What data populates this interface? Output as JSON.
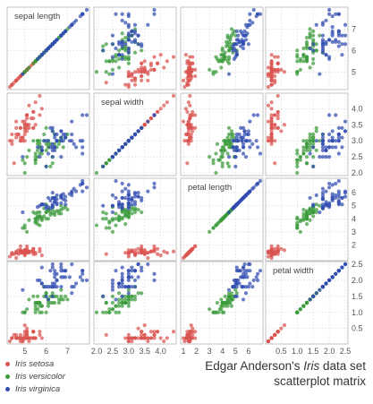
{
  "caption": {
    "line1_before": "Edgar Anderson's ",
    "line1_italic": "Iris",
    "line1_after": " data set",
    "line2": "scatterplot matrix"
  },
  "chart_data": {
    "type": "scatter",
    "title": "Edgar Anderson's Iris data set scatterplot matrix",
    "variables": [
      "sepal length",
      "sepal width",
      "petal length",
      "petal width"
    ],
    "ranges": [
      [
        4.3,
        7.9
      ],
      [
        2.0,
        4.4
      ],
      [
        1.0,
        6.9
      ],
      [
        0.1,
        2.5
      ]
    ],
    "bottom_ticks": [
      [
        5,
        6,
        7
      ],
      [
        2.0,
        2.5,
        3.0,
        3.5,
        4.0
      ],
      [
        1,
        2,
        3,
        4,
        5,
        6
      ],
      [
        0.5,
        1.0,
        1.5,
        2.0,
        2.5
      ]
    ],
    "bottom_tick_labels": [
      [
        "5",
        "6",
        "7"
      ],
      [
        "2.0",
        "2.5",
        "3.0",
        "3.5",
        "4.0"
      ],
      [
        "1",
        "2",
        "3",
        "4",
        "5",
        "6"
      ],
      [
        "0.5",
        "1.0",
        "1.5",
        "2.0",
        "2.5"
      ]
    ],
    "right_ticks": [
      [
        5,
        6,
        7
      ],
      [
        2.0,
        2.5,
        3.0,
        3.5,
        4.0
      ],
      [
        2,
        3,
        4,
        5,
        6
      ],
      [
        0.5,
        1.0,
        1.5,
        2.0,
        2.5
      ]
    ],
    "right_tick_labels": [
      [
        "5",
        "6",
        "7"
      ],
      [
        "2.0",
        "2.5",
        "3.0",
        "3.5",
        "4.0"
      ],
      [
        "2",
        "3",
        "4",
        "5",
        "6"
      ],
      [
        "0.5",
        "1.0",
        "1.5",
        "2.0",
        "2.5"
      ]
    ],
    "grid": true,
    "legend_position": "bottom-left",
    "series": [
      {
        "name": "Iris setosa",
        "color": "#d9534f",
        "data": [
          [
            5.1,
            3.5,
            1.4,
            0.2
          ],
          [
            4.9,
            3.0,
            1.4,
            0.2
          ],
          [
            4.7,
            3.2,
            1.3,
            0.2
          ],
          [
            4.6,
            3.1,
            1.5,
            0.2
          ],
          [
            5.0,
            3.6,
            1.4,
            0.2
          ],
          [
            5.4,
            3.9,
            1.7,
            0.4
          ],
          [
            4.6,
            3.4,
            1.4,
            0.3
          ],
          [
            5.0,
            3.4,
            1.5,
            0.2
          ],
          [
            4.4,
            2.9,
            1.4,
            0.2
          ],
          [
            4.9,
            3.1,
            1.5,
            0.1
          ],
          [
            5.4,
            3.7,
            1.5,
            0.2
          ],
          [
            4.8,
            3.4,
            1.6,
            0.2
          ],
          [
            4.8,
            3.0,
            1.4,
            0.1
          ],
          [
            4.3,
            3.0,
            1.1,
            0.1
          ],
          [
            5.8,
            4.0,
            1.2,
            0.2
          ],
          [
            5.7,
            4.4,
            1.5,
            0.4
          ],
          [
            5.4,
            3.9,
            1.3,
            0.4
          ],
          [
            5.1,
            3.5,
            1.4,
            0.3
          ],
          [
            5.7,
            3.8,
            1.7,
            0.3
          ],
          [
            5.1,
            3.8,
            1.5,
            0.3
          ],
          [
            5.4,
            3.4,
            1.7,
            0.2
          ],
          [
            5.1,
            3.7,
            1.5,
            0.4
          ],
          [
            4.6,
            3.6,
            1.0,
            0.2
          ],
          [
            5.1,
            3.3,
            1.7,
            0.5
          ],
          [
            4.8,
            3.4,
            1.9,
            0.2
          ],
          [
            5.0,
            3.0,
            1.6,
            0.2
          ],
          [
            5.0,
            3.4,
            1.6,
            0.4
          ],
          [
            5.2,
            3.5,
            1.5,
            0.2
          ],
          [
            5.2,
            3.4,
            1.4,
            0.2
          ],
          [
            4.7,
            3.2,
            1.6,
            0.2
          ],
          [
            4.8,
            3.1,
            1.6,
            0.2
          ],
          [
            5.4,
            3.4,
            1.5,
            0.4
          ],
          [
            5.2,
            4.1,
            1.5,
            0.1
          ],
          [
            5.5,
            4.2,
            1.4,
            0.2
          ],
          [
            4.9,
            3.1,
            1.5,
            0.2
          ],
          [
            5.0,
            3.2,
            1.2,
            0.2
          ],
          [
            5.5,
            3.5,
            1.3,
            0.2
          ],
          [
            4.9,
            3.6,
            1.4,
            0.1
          ],
          [
            4.4,
            3.0,
            1.3,
            0.2
          ],
          [
            5.1,
            3.4,
            1.5,
            0.2
          ],
          [
            5.0,
            3.5,
            1.3,
            0.3
          ],
          [
            4.5,
            2.3,
            1.3,
            0.3
          ],
          [
            4.4,
            3.2,
            1.3,
            0.2
          ],
          [
            5.0,
            3.5,
            1.6,
            0.6
          ],
          [
            5.1,
            3.8,
            1.9,
            0.4
          ],
          [
            4.8,
            3.0,
            1.4,
            0.3
          ],
          [
            5.1,
            3.8,
            1.6,
            0.2
          ],
          [
            4.6,
            3.2,
            1.4,
            0.2
          ],
          [
            5.3,
            3.7,
            1.5,
            0.2
          ],
          [
            5.0,
            3.3,
            1.4,
            0.2
          ]
        ]
      },
      {
        "name": "Iris versicolor",
        "color": "#3a9a3a",
        "data": [
          [
            7.0,
            3.2,
            4.7,
            1.4
          ],
          [
            6.4,
            3.2,
            4.5,
            1.5
          ],
          [
            6.9,
            3.1,
            4.9,
            1.5
          ],
          [
            5.5,
            2.3,
            4.0,
            1.3
          ],
          [
            6.5,
            2.8,
            4.6,
            1.5
          ],
          [
            5.7,
            2.8,
            4.5,
            1.3
          ],
          [
            6.3,
            3.3,
            4.7,
            1.6
          ],
          [
            4.9,
            2.4,
            3.3,
            1.0
          ],
          [
            6.6,
            2.9,
            4.6,
            1.3
          ],
          [
            5.2,
            2.7,
            3.9,
            1.4
          ],
          [
            5.0,
            2.0,
            3.5,
            1.0
          ],
          [
            5.9,
            3.0,
            4.2,
            1.5
          ],
          [
            6.0,
            2.2,
            4.0,
            1.0
          ],
          [
            6.1,
            2.9,
            4.7,
            1.4
          ],
          [
            5.6,
            2.9,
            3.6,
            1.3
          ],
          [
            6.7,
            3.1,
            4.4,
            1.4
          ],
          [
            5.6,
            3.0,
            4.5,
            1.5
          ],
          [
            5.8,
            2.7,
            4.1,
            1.0
          ],
          [
            6.2,
            2.2,
            4.5,
            1.5
          ],
          [
            5.6,
            2.5,
            3.9,
            1.1
          ],
          [
            5.9,
            3.2,
            4.8,
            1.8
          ],
          [
            6.1,
            2.8,
            4.0,
            1.3
          ],
          [
            6.3,
            2.5,
            4.9,
            1.5
          ],
          [
            6.1,
            2.8,
            4.7,
            1.2
          ],
          [
            6.4,
            2.9,
            4.3,
            1.3
          ],
          [
            6.6,
            3.0,
            4.4,
            1.4
          ],
          [
            6.8,
            2.8,
            4.8,
            1.4
          ],
          [
            6.7,
            3.0,
            5.0,
            1.7
          ],
          [
            6.0,
            2.9,
            4.5,
            1.5
          ],
          [
            5.7,
            2.6,
            3.5,
            1.0
          ],
          [
            5.5,
            2.4,
            3.8,
            1.1
          ],
          [
            5.5,
            2.4,
            3.7,
            1.0
          ],
          [
            5.8,
            2.7,
            3.9,
            1.2
          ],
          [
            6.0,
            2.7,
            5.1,
            1.6
          ],
          [
            5.4,
            3.0,
            4.5,
            1.5
          ],
          [
            6.0,
            3.4,
            4.5,
            1.6
          ],
          [
            6.7,
            3.1,
            4.7,
            1.5
          ],
          [
            6.3,
            2.3,
            4.4,
            1.3
          ],
          [
            5.6,
            3.0,
            4.1,
            1.3
          ],
          [
            5.5,
            2.5,
            4.0,
            1.3
          ],
          [
            5.5,
            2.6,
            4.4,
            1.2
          ],
          [
            6.1,
            3.0,
            4.6,
            1.4
          ],
          [
            5.8,
            2.6,
            4.0,
            1.2
          ],
          [
            5.0,
            2.3,
            3.3,
            1.0
          ],
          [
            5.6,
            2.7,
            4.2,
            1.3
          ],
          [
            5.7,
            3.0,
            4.2,
            1.2
          ],
          [
            5.7,
            2.9,
            4.2,
            1.3
          ],
          [
            6.2,
            2.9,
            4.3,
            1.3
          ],
          [
            5.1,
            2.5,
            3.0,
            1.1
          ],
          [
            5.7,
            2.8,
            4.1,
            1.3
          ]
        ]
      },
      {
        "name": "Iris virginica",
        "color": "#2f4bb0",
        "data": [
          [
            6.3,
            3.3,
            6.0,
            2.5
          ],
          [
            5.8,
            2.7,
            5.1,
            1.9
          ],
          [
            7.1,
            3.0,
            5.9,
            2.1
          ],
          [
            6.3,
            2.9,
            5.6,
            1.8
          ],
          [
            6.5,
            3.0,
            5.8,
            2.2
          ],
          [
            7.6,
            3.0,
            6.6,
            2.1
          ],
          [
            4.9,
            2.5,
            4.5,
            1.7
          ],
          [
            7.3,
            2.9,
            6.3,
            1.8
          ],
          [
            6.7,
            2.5,
            5.8,
            1.8
          ],
          [
            7.2,
            3.6,
            6.1,
            2.5
          ],
          [
            6.5,
            3.2,
            5.1,
            2.0
          ],
          [
            6.4,
            2.7,
            5.3,
            1.9
          ],
          [
            6.8,
            3.0,
            5.5,
            2.1
          ],
          [
            5.7,
            2.5,
            5.0,
            2.0
          ],
          [
            5.8,
            2.8,
            5.1,
            2.4
          ],
          [
            6.4,
            3.2,
            5.3,
            2.3
          ],
          [
            6.5,
            3.0,
            5.5,
            1.8
          ],
          [
            7.7,
            3.8,
            6.7,
            2.2
          ],
          [
            7.7,
            2.6,
            6.9,
            2.3
          ],
          [
            6.0,
            2.2,
            5.0,
            1.5
          ],
          [
            6.9,
            3.2,
            5.7,
            2.3
          ],
          [
            5.6,
            2.8,
            4.9,
            2.0
          ],
          [
            7.7,
            2.8,
            6.7,
            2.0
          ],
          [
            6.3,
            2.7,
            4.9,
            1.8
          ],
          [
            6.7,
            3.3,
            5.7,
            2.1
          ],
          [
            7.2,
            3.2,
            6.0,
            1.8
          ],
          [
            6.2,
            2.8,
            4.8,
            1.8
          ],
          [
            6.1,
            3.0,
            4.9,
            1.8
          ],
          [
            6.4,
            2.8,
            5.6,
            2.1
          ],
          [
            7.2,
            3.0,
            5.8,
            1.6
          ],
          [
            7.4,
            2.8,
            6.1,
            1.9
          ],
          [
            7.9,
            3.8,
            6.4,
            2.0
          ],
          [
            6.4,
            2.8,
            5.6,
            2.2
          ],
          [
            6.3,
            2.8,
            5.1,
            1.5
          ],
          [
            6.1,
            2.6,
            5.6,
            1.4
          ],
          [
            7.7,
            3.0,
            6.1,
            2.3
          ],
          [
            6.3,
            3.4,
            5.6,
            2.4
          ],
          [
            6.4,
            3.1,
            5.5,
            1.8
          ],
          [
            6.0,
            3.0,
            4.8,
            1.8
          ],
          [
            6.9,
            3.1,
            5.4,
            2.1
          ],
          [
            6.7,
            3.1,
            5.6,
            2.4
          ],
          [
            6.9,
            3.1,
            5.1,
            2.3
          ],
          [
            5.8,
            2.7,
            5.1,
            1.9
          ],
          [
            6.8,
            3.2,
            5.9,
            2.3
          ],
          [
            6.7,
            3.3,
            5.7,
            2.5
          ],
          [
            6.7,
            3.0,
            5.2,
            2.3
          ],
          [
            6.3,
            2.5,
            5.0,
            1.9
          ],
          [
            6.5,
            3.0,
            5.2,
            2.0
          ],
          [
            6.2,
            3.4,
            5.4,
            2.3
          ],
          [
            5.9,
            3.0,
            5.1,
            1.8
          ]
        ]
      }
    ]
  }
}
